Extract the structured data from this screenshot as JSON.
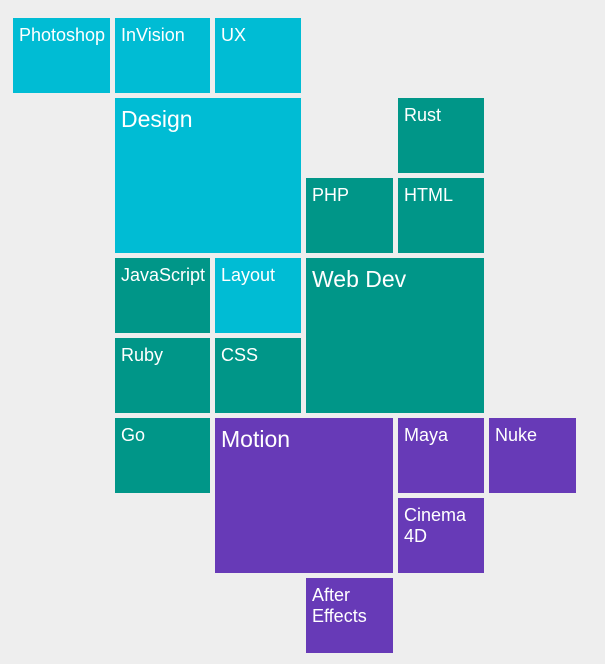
{
  "colors": {
    "background": "#eeeeee",
    "design": "#00bcd4",
    "web_dev": "#009688",
    "motion": "#673ab7"
  },
  "tiles": {
    "photoshop": "Photoshop",
    "invision": "InVision",
    "ux": "UX",
    "design": "Design",
    "rust": "Rust",
    "php": "PHP",
    "html": "HTML",
    "javascript": "JavaScript",
    "layout": "Layout",
    "web_dev": "Web Dev",
    "ruby": "Ruby",
    "css": "CSS",
    "go": "Go",
    "motion": "Motion",
    "maya": "Maya",
    "nuke": "Nuke",
    "cinema_4d": "Cinema 4D",
    "after_effects": "After Effects"
  }
}
